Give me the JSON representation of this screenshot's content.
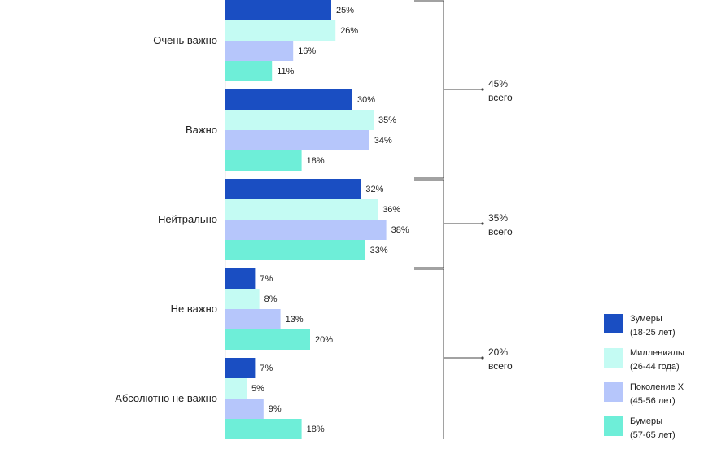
{
  "chart_data": {
    "type": "bar",
    "orientation": "horizontal",
    "categories": [
      "Очень важно",
      "Важно",
      "Нейтрально",
      "Не важно",
      "Абсолютно не важно"
    ],
    "series": [
      {
        "name": "Зумеры",
        "sub": "(18-25 лет)",
        "color": "#1a4ec2",
        "values": [
          25,
          30,
          32,
          7,
          7
        ]
      },
      {
        "name": "Миллениалы",
        "sub": "(26-44 года)",
        "color": "#c4fbf3",
        "values": [
          26,
          35,
          36,
          8,
          5
        ]
      },
      {
        "name": "Поколение X",
        "sub": "(45-56 лет)",
        "color": "#b6c6fb",
        "values": [
          16,
          34,
          38,
          13,
          9
        ]
      },
      {
        "name": "Бумеры",
        "sub": "(57-65 лет)",
        "color": "#6eeed8",
        "values": [
          11,
          18,
          33,
          20,
          18
        ]
      }
    ],
    "value_suffix": "%",
    "xlim": [
      0,
      38
    ],
    "grid": false,
    "legend_position": "bottom-right",
    "groups": [
      {
        "value": "45%",
        "label": "всего",
        "categories": [
          0,
          1
        ]
      },
      {
        "value": "35%",
        "label": "всего",
        "categories": [
          2
        ]
      },
      {
        "value": "20%",
        "label": "всего",
        "categories": [
          3,
          4
        ]
      }
    ]
  }
}
